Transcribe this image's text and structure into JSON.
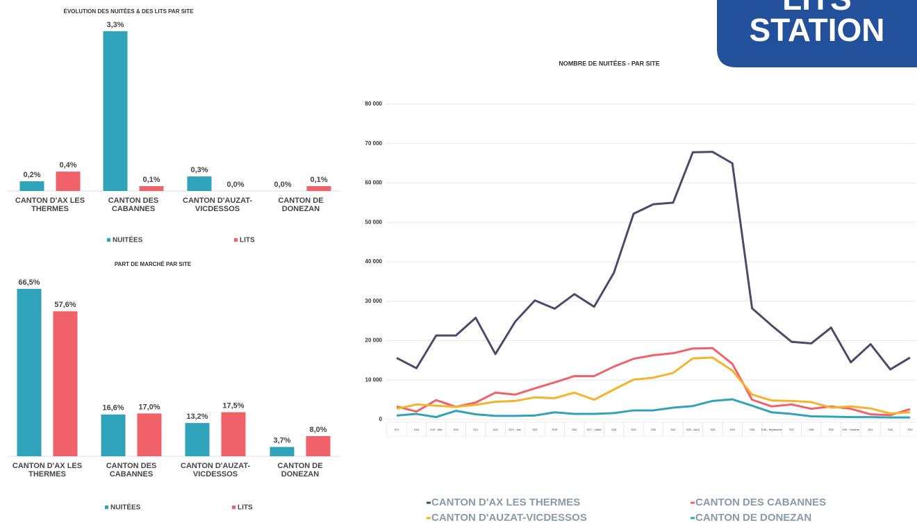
{
  "badge": {
    "lines": [
      "LITS",
      "STATION"
    ]
  },
  "chart_data": [
    {
      "type": "bar",
      "title": "ÉVOLUTION DES NUITÉES & DES LITS PAR SITE",
      "categories": [
        "CANTON D'AX LES THERMES",
        "CANTON DES CABANNES",
        "CANTON D'AUZAT-VICDESSOS",
        "CANTON DE DONEZAN"
      ],
      "series": [
        {
          "name": "NUITÉES",
          "color": "#2ea3b9",
          "values": [
            0.2,
            3.3,
            0.3,
            0.0
          ],
          "value_labels": [
            "0,2%",
            "3,3%",
            "0,3%",
            "0,0%"
          ]
        },
        {
          "name": "LITS",
          "color": "#f0616a",
          "values": [
            0.4,
            0.1,
            0.0,
            0.1
          ],
          "value_labels": [
            "0,4%",
            "0,1%",
            "0,0%",
            "0,1%"
          ]
        }
      ],
      "legend": "bottom"
    },
    {
      "type": "bar",
      "title": "PART DE MARCHÉ PAR SITE",
      "categories": [
        "CANTON D'AX LES THERMES",
        "CANTON DES CABANNES",
        "CANTON D'AUZAT-VICDESSOS",
        "CANTON DE DONEZAN"
      ],
      "series": [
        {
          "name": "NUITÉES",
          "color": "#2ea3b9",
          "values": [
            66.5,
            16.6,
            13.2,
            3.7
          ],
          "value_labels": [
            "66,5%",
            "16,6%",
            "13,2%",
            "3,7%"
          ]
        },
        {
          "name": "LITS",
          "color": "#f0616a",
          "values": [
            57.6,
            17.0,
            17.5,
            8.0
          ],
          "value_labels": [
            "57,6%",
            "17,0%",
            "17,5%",
            "8,0%"
          ]
        }
      ],
      "legend": "bottom"
    },
    {
      "type": "line",
      "title": "NOMBRE DE NUITÉES - PAR SITE",
      "categories": [
        "S17",
        "S18",
        "S19 - Mai",
        "S20",
        "S21",
        "S22",
        "S23 - Juin",
        "S24",
        "S25",
        "S26",
        "S27 - Juillet",
        "S28",
        "S29",
        "S30",
        "S31",
        "S32 - Août",
        "S33",
        "S34",
        "S35",
        "S36 - Septembre",
        "S37",
        "S38",
        "S39",
        "S40 - Octobre",
        "S41",
        "S42",
        "S43"
      ],
      "series": [
        {
          "name": "CANTON D'AX LES THERMES",
          "color": "#4a4a6a",
          "values": [
            15600,
            13000,
            21300,
            21300,
            25800,
            16600,
            24800,
            30200,
            28100,
            31800,
            28600,
            37200,
            52200,
            54600,
            55000,
            67800,
            67900,
            65000,
            28200,
            23800,
            19700,
            19300,
            23300,
            14500,
            19100,
            12700,
            15700
          ]
        },
        {
          "name": "CANTON DES CABANNES",
          "color": "#f0616a",
          "values": [
            3300,
            2000,
            4900,
            3200,
            4300,
            6800,
            6300,
            7900,
            9400,
            11000,
            11000,
            13400,
            15400,
            16300,
            16800,
            18000,
            18100,
            14100,
            5000,
            3300,
            3800,
            2700,
            3300,
            2700,
            1300,
            1100,
            2600
          ]
        },
        {
          "name": "CANTON D'AUZAT-VICDESSOS",
          "color": "#f5b32b",
          "values": [
            2700,
            3800,
            3500,
            3200,
            3700,
            4500,
            4700,
            5600,
            5400,
            6800,
            5000,
            7600,
            10100,
            10600,
            11800,
            15500,
            15700,
            12400,
            6300,
            4800,
            4700,
            4400,
            3000,
            3300,
            2800,
            1500,
            1800
          ]
        },
        {
          "name": "CANTON DE DONEZAN",
          "color": "#2ea3b9",
          "values": [
            1000,
            1400,
            600,
            2200,
            1300,
            900,
            900,
            1000,
            1800,
            1400,
            1400,
            1600,
            2300,
            2300,
            3000,
            3400,
            4700,
            5100,
            3500,
            1800,
            1400,
            800,
            700,
            600,
            600,
            500,
            500
          ]
        }
      ],
      "ylim": [
        0,
        80000
      ],
      "yticks": [
        0,
        {
          "value": 10000,
          "label": "10 000"
        },
        {
          "value": 20000,
          "label": "20 000"
        },
        {
          "value": 30000,
          "label": "30 000"
        },
        {
          "value": 40000,
          "label": "40 000"
        },
        {
          "value": 50000,
          "label": "50 000"
        },
        {
          "value": 60000,
          "label": "60 000"
        },
        {
          "value": 70000,
          "label": "70 000"
        },
        {
          "value": 80000,
          "label": "80 000"
        }
      ],
      "grid": true,
      "legend": "bottom"
    }
  ]
}
